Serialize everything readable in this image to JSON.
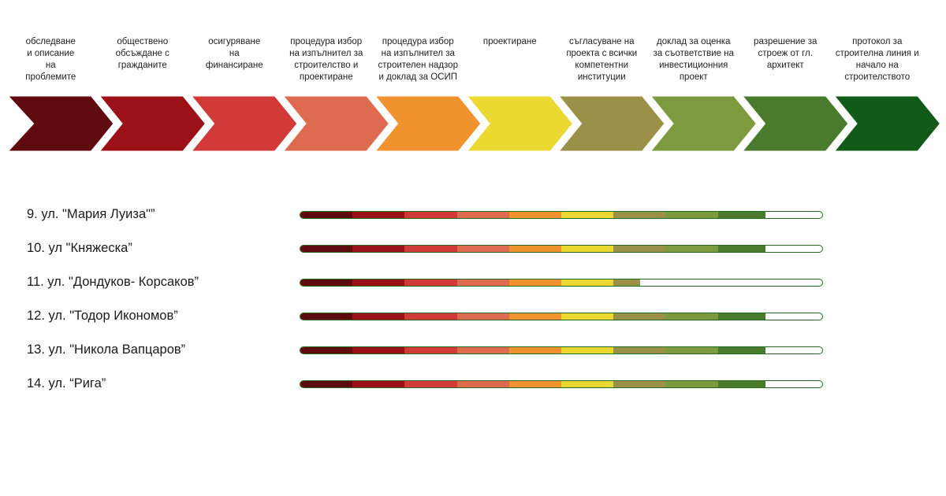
{
  "stages": [
    {
      "label": "обследване\nи описание\nна\nпроблемите",
      "color": "#5e0a0e"
    },
    {
      "label": "обществено\nобсъждане с\nгражданите",
      "color": "#9c1017"
    },
    {
      "label": "осигуряване\nна\nфинансиране",
      "color": "#d23a3a"
    },
    {
      "label": "процедура избор\nна изпълнител за\nстроителство и\nпроектиране",
      "color": "#de6a4f"
    },
    {
      "label": "процедура избор\nна изпълнител за\nстроителен надзор\nи доклад за ОСИП",
      "color": "#f0932f"
    },
    {
      "label": "проектиране",
      "color": "#ebd932"
    },
    {
      "label": "съгласуване на\nпроекта с всички\nкомпетентни\nинституции",
      "color": "#9b9047"
    },
    {
      "label": "доклад за оценка\nза съответствие на\nинвестиционния\nпроект",
      "color": "#7e9a3e"
    },
    {
      "label": "разрешение за\nстроеж от гл.\nархитект",
      "color": "#4a7a2c"
    },
    {
      "label": "протокол за\nстроителна линия и\nначало на\nстроителството",
      "color": "#0f5b17"
    }
  ],
  "streets": [
    {
      "label": "9.   ул. \"Мария Луиза\"”",
      "completed_stages": 8.9
    },
    {
      "label": "10. ул \"Княжеска”",
      "completed_stages": 8.9
    },
    {
      "label": "11. ул. \"Дондуков- Корсаков”",
      "completed_stages": 6.5
    },
    {
      "label": "12. ул. \"Тодор Икономов”",
      "completed_stages": 8.9
    },
    {
      "label": "13. ул. \"Никола Вапцаров”",
      "completed_stages": 8.9
    },
    {
      "label": "14. ул. “Рига”",
      "completed_stages": 8.9
    }
  ]
}
